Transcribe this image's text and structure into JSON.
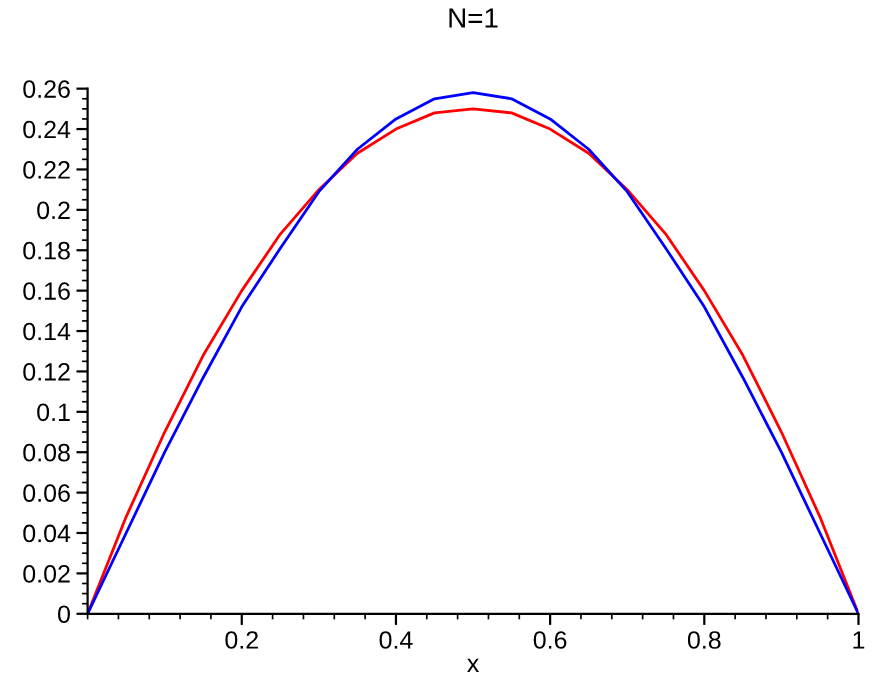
{
  "chart_data": {
    "type": "line",
    "title": "N=1",
    "xlabel": "x",
    "x": [
      0,
      0.05,
      0.1,
      0.15,
      0.2,
      0.25,
      0.3,
      0.35,
      0.4,
      0.45,
      0.5,
      0.55,
      0.6,
      0.65,
      0.7,
      0.75,
      0.8,
      0.85,
      0.9,
      0.95,
      1
    ],
    "series": [
      {
        "color": "#ff0000",
        "values": [
          0,
          0.048,
          0.09,
          0.128,
          0.16,
          0.188,
          0.21,
          0.228,
          0.24,
          0.248,
          0.25,
          0.248,
          0.24,
          0.228,
          0.21,
          0.188,
          0.16,
          0.128,
          0.09,
          0.048,
          0
        ]
      },
      {
        "color": "#0000ff",
        "values": [
          0,
          0.04,
          0.08,
          0.117,
          0.152,
          0.181,
          0.209,
          0.23,
          0.245,
          0.255,
          0.258,
          0.255,
          0.245,
          0.23,
          0.209,
          0.181,
          0.152,
          0.117,
          0.08,
          0.04,
          0
        ]
      }
    ],
    "xlim": [
      0,
      1
    ],
    "ylim": [
      0,
      0.26
    ],
    "xticks": [
      0.2,
      0.4,
      0.6,
      0.8,
      1
    ],
    "yticks": [
      0,
      0.02,
      0.04,
      0.06,
      0.08,
      0.1,
      0.12,
      0.14,
      0.16,
      0.18,
      0.2,
      0.22,
      0.24,
      0.26
    ],
    "grid": false,
    "legend": false
  }
}
